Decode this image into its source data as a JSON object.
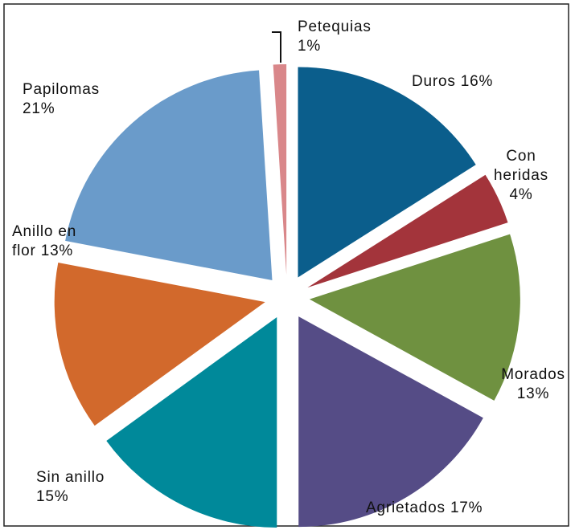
{
  "chart_data": {
    "type": "pie",
    "categories": [
      "Duros",
      "Con heridas",
      "Morados",
      "Agrietados",
      "Sin anillo",
      "Anillo en flor",
      "Papilomas",
      "Petequias"
    ],
    "values": [
      16,
      4,
      13,
      17,
      15,
      13,
      21,
      1
    ],
    "value_labels": [
      "16%",
      "4%",
      "13%",
      "17%",
      "15%",
      "13%",
      "21%",
      "1%"
    ],
    "colors": [
      "#0b5e8c",
      "#a3343b",
      "#6f9140",
      "#554c86",
      "#00899a",
      "#d2692c",
      "#6a9bca",
      "#d9878a"
    ]
  }
}
